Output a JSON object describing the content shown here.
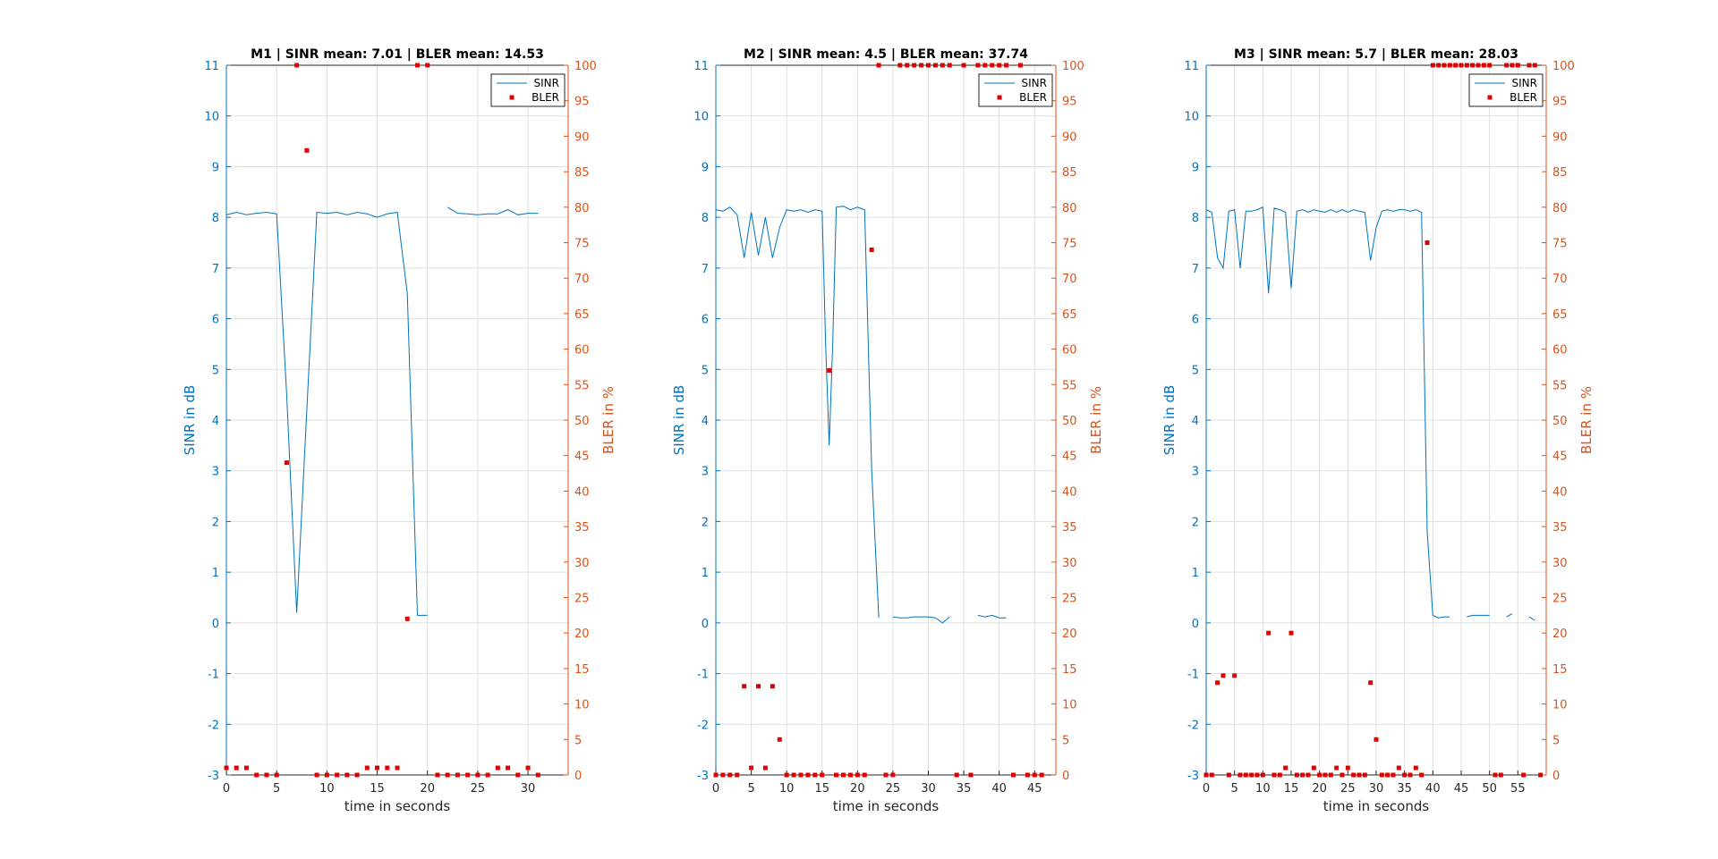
{
  "chart_data": [
    {
      "type": "line",
      "title": "M1 | SINR mean: 7.01 | BLER mean: 14.53",
      "xlabel": "time in seconds",
      "ylabel": "SINR in dB",
      "y2label": "BLER in %",
      "xlim": [
        0,
        34
      ],
      "xticks": [
        0,
        5,
        10,
        15,
        20,
        25,
        30
      ],
      "ylim": [
        -3,
        11
      ],
      "yticks": [
        -3,
        -2,
        -1,
        0,
        1,
        2,
        3,
        4,
        5,
        6,
        7,
        8,
        9,
        10,
        11
      ],
      "y2lim": [
        0,
        100
      ],
      "y2ticks": [
        0,
        5,
        10,
        15,
        20,
        25,
        30,
        35,
        40,
        45,
        50,
        55,
        60,
        65,
        70,
        75,
        80,
        85,
        90,
        95,
        100
      ],
      "grid": true,
      "legend": {
        "position": "top-right",
        "entries": [
          "SINR",
          "BLER"
        ]
      },
      "series": [
        {
          "name": "SINR",
          "axis": "left",
          "style": "line",
          "x": [
            0,
            1,
            2,
            3,
            4,
            5,
            6,
            7,
            8,
            9,
            10,
            11,
            12,
            13,
            14,
            15,
            16,
            17,
            18,
            19,
            20,
            null,
            22,
            23,
            24,
            25,
            26,
            27,
            28,
            29,
            30,
            31
          ],
          "y": [
            8.05,
            8.1,
            8.05,
            8.08,
            8.1,
            8.07,
            4.5,
            0.2,
            4.2,
            8.1,
            8.08,
            8.1,
            8.05,
            8.1,
            8.07,
            8.0,
            8.07,
            8.1,
            6.5,
            0.15,
            0.15,
            null,
            8.2,
            8.08,
            8.07,
            8.05,
            8.07,
            8.07,
            8.15,
            8.05,
            8.08,
            8.08
          ]
        },
        {
          "name": "BLER",
          "axis": "right",
          "style": "marker",
          "x": [
            0,
            1,
            2,
            3,
            4,
            5,
            6,
            7,
            8,
            9,
            10,
            11,
            12,
            13,
            14,
            15,
            16,
            17,
            18,
            19,
            20,
            21,
            22,
            23,
            24,
            25,
            26,
            27,
            28,
            29,
            30,
            31
          ],
          "y": [
            1,
            1,
            1,
            0,
            0,
            0,
            44,
            100,
            88,
            0,
            0,
            0,
            0,
            0,
            1,
            1,
            1,
            1,
            22,
            100,
            100,
            0,
            0,
            0,
            0,
            0,
            0,
            1,
            1,
            0,
            1,
            0
          ]
        }
      ]
    },
    {
      "type": "line",
      "title": "M2 | SINR mean: 4.5 | BLER mean: 37.74",
      "xlabel": "time in seconds",
      "ylabel": "SINR in dB",
      "y2label": "BLER in %",
      "xlim": [
        0,
        48
      ],
      "xticks": [
        0,
        5,
        10,
        15,
        20,
        25,
        30,
        35,
        40,
        45
      ],
      "ylim": [
        -3,
        11
      ],
      "yticks": [
        -3,
        -2,
        -1,
        0,
        1,
        2,
        3,
        4,
        5,
        6,
        7,
        8,
        9,
        10,
        11
      ],
      "y2lim": [
        0,
        100
      ],
      "y2ticks": [
        0,
        5,
        10,
        15,
        20,
        25,
        30,
        35,
        40,
        45,
        50,
        55,
        60,
        65,
        70,
        75,
        80,
        85,
        90,
        95,
        100
      ],
      "grid": true,
      "legend": {
        "position": "top-right",
        "entries": [
          "SINR",
          "BLER"
        ]
      },
      "series": [
        {
          "name": "SINR",
          "axis": "left",
          "style": "line",
          "x": [
            0,
            1,
            2,
            3,
            4,
            5,
            6,
            7,
            8,
            9,
            10,
            11,
            12,
            13,
            14,
            15,
            15.5,
            16,
            16.5,
            17,
            18,
            19,
            20,
            21,
            22,
            23,
            null,
            25,
            26,
            27,
            28,
            29,
            30,
            31,
            32,
            33,
            null,
            37,
            38,
            39,
            40,
            41
          ],
          "y": [
            8.15,
            8.12,
            8.2,
            8.05,
            7.2,
            8.1,
            7.25,
            8.0,
            7.2,
            7.8,
            8.15,
            8.12,
            8.15,
            8.1,
            8.15,
            8.12,
            5.5,
            3.5,
            5.5,
            8.2,
            8.22,
            8.15,
            8.2,
            8.15,
            3.0,
            0.1,
            null,
            0.12,
            0.1,
            0.1,
            0.12,
            0.12,
            0.12,
            0.1,
            0.0,
            0.12,
            null,
            0.15,
            0.12,
            0.15,
            0.1,
            0.1
          ]
        },
        {
          "name": "BLER",
          "axis": "right",
          "style": "marker",
          "x": [
            0,
            1,
            2,
            3,
            4,
            5,
            6,
            7,
            8,
            9,
            10,
            11,
            12,
            13,
            14,
            15,
            16,
            17,
            18,
            19,
            20,
            21,
            22,
            23,
            24,
            25,
            26,
            27,
            28,
            29,
            30,
            31,
            32,
            33,
            34,
            35,
            36,
            37,
            38,
            39,
            40,
            41,
            42,
            43,
            44,
            45,
            46
          ],
          "y": [
            0,
            0,
            0,
            0,
            12.5,
            1,
            12.5,
            1,
            12.5,
            5,
            0,
            0,
            0,
            0,
            0,
            0,
            57,
            0,
            0,
            0,
            0,
            0,
            74,
            100,
            0,
            0,
            100,
            100,
            100,
            100,
            100,
            100,
            100,
            100,
            0,
            100,
            0,
            100,
            100,
            100,
            100,
            100,
            0,
            100,
            0,
            0,
            0
          ]
        }
      ]
    },
    {
      "type": "line",
      "title": "M3 | SINR mean: 5.7 | BLER mean: 28.03",
      "xlabel": "time in seconds",
      "ylabel": "SINR in dB",
      "y2label": "BLER in %",
      "xlim": [
        0,
        60
      ],
      "xticks": [
        0,
        5,
        10,
        15,
        20,
        25,
        30,
        35,
        40,
        45,
        50,
        55
      ],
      "ylim": [
        -3,
        11
      ],
      "yticks": [
        -3,
        -2,
        -1,
        0,
        1,
        2,
        3,
        4,
        5,
        6,
        7,
        8,
        9,
        10,
        11
      ],
      "y2lim": [
        0,
        100
      ],
      "y2ticks": [
        0,
        5,
        10,
        15,
        20,
        25,
        30,
        35,
        40,
        45,
        50,
        55,
        60,
        65,
        70,
        75,
        80,
        85,
        90,
        95,
        100
      ],
      "grid": true,
      "legend": {
        "position": "top-right",
        "entries": [
          "SINR",
          "BLER"
        ]
      },
      "series": [
        {
          "name": "SINR",
          "axis": "left",
          "style": "line",
          "x": [
            0,
            1,
            2,
            3,
            4,
            5,
            6,
            7,
            8,
            9,
            10,
            11,
            12,
            13,
            14,
            15,
            16,
            17,
            18,
            19,
            20,
            21,
            22,
            23,
            24,
            25,
            26,
            27,
            28,
            29,
            30,
            31,
            32,
            33,
            34,
            35,
            36,
            37,
            38,
            39,
            40,
            41,
            42,
            43,
            null,
            46,
            47,
            48,
            49,
            50,
            null,
            53,
            54,
            null,
            57,
            58
          ],
          "y": [
            8.15,
            8.1,
            7.2,
            7.0,
            8.12,
            8.15,
            7.0,
            8.12,
            8.12,
            8.15,
            8.2,
            6.5,
            8.18,
            8.15,
            8.1,
            6.6,
            8.12,
            8.15,
            8.1,
            8.15,
            8.12,
            8.1,
            8.15,
            8.1,
            8.15,
            8.1,
            8.15,
            8.12,
            8.1,
            7.15,
            7.8,
            8.12,
            8.15,
            8.12,
            8.15,
            8.15,
            8.12,
            8.15,
            8.1,
            1.8,
            0.15,
            0.1,
            0.12,
            0.12,
            null,
            0.12,
            0.15,
            0.15,
            0.15,
            0.15,
            null,
            0.12,
            0.18,
            null,
            0.12,
            0.05
          ]
        },
        {
          "name": "BLER",
          "axis": "right",
          "style": "marker",
          "x": [
            0,
            1,
            2,
            3,
            4,
            5,
            6,
            7,
            8,
            9,
            10,
            11,
            12,
            13,
            14,
            15,
            16,
            17,
            18,
            19,
            20,
            21,
            22,
            23,
            24,
            25,
            26,
            27,
            28,
            29,
            30,
            31,
            32,
            33,
            34,
            35,
            36,
            37,
            38,
            39,
            40,
            41,
            42,
            43,
            44,
            45,
            46,
            47,
            48,
            49,
            50,
            51,
            52,
            53,
            54,
            55,
            56,
            57,
            58,
            59
          ],
          "y": [
            0,
            0,
            13,
            14,
            0,
            14,
            0,
            0,
            0,
            0,
            0,
            20,
            0,
            0,
            1,
            20,
            0,
            0,
            0,
            1,
            0,
            0,
            0,
            1,
            0,
            1,
            0,
            0,
            0,
            13,
            5,
            0,
            0,
            0,
            1,
            0,
            0,
            1,
            0,
            75,
            100,
            100,
            100,
            100,
            100,
            100,
            100,
            100,
            100,
            100,
            100,
            0,
            0,
            100,
            100,
            100,
            0,
            100,
            100,
            0
          ]
        }
      ]
    }
  ]
}
